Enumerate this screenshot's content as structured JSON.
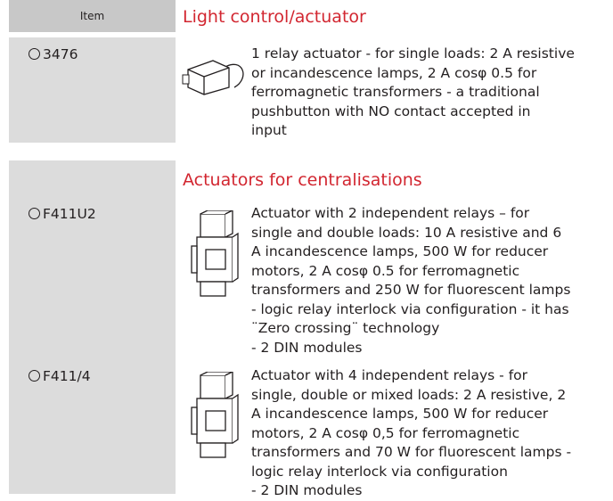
{
  "header": {
    "item": "Item"
  },
  "sections": [
    {
      "title": "Light control/actuator",
      "items": [
        {
          "code": "3476",
          "description": [
            "1 relay actuator - for single loads: 2 A resistive",
            "or incandescence lamps, 2 A cosφ 0.5 for",
            "ferromagnetic transformers - a traditional",
            "pushbutton with NO contact accepted in",
            "input"
          ]
        }
      ]
    },
    {
      "title": "Actuators for centralisations",
      "items": [
        {
          "code": "F411U2",
          "description": [
            "Actuator with 2 independent relays – for",
            "single and double loads: 10 A resistive and 6",
            "A incandescence lamps, 500 W for reducer",
            "motors, 2 A cosφ  0.5 for ferromagnetic",
            "transformers and 250 W for fluorescent lamps",
            "- logic relay interlock via configuration - it has",
            "¨Zero crossing¨ technology",
            "- 2 DIN modules"
          ]
        },
        {
          "code": "F411/4",
          "description": [
            "Actuator with 4 independent relays - for",
            "single, double or mixed loads: 2 A resistive, 2",
            "A incandescence lamps, 500 W for reducer",
            "motors, 2 A cosφ  0,5 for ferromagnetic",
            "transformers and 70 W for fluorescent lamps -",
            "logic relay interlock via configuration",
            "- 2 DIN modules"
          ]
        }
      ]
    }
  ]
}
